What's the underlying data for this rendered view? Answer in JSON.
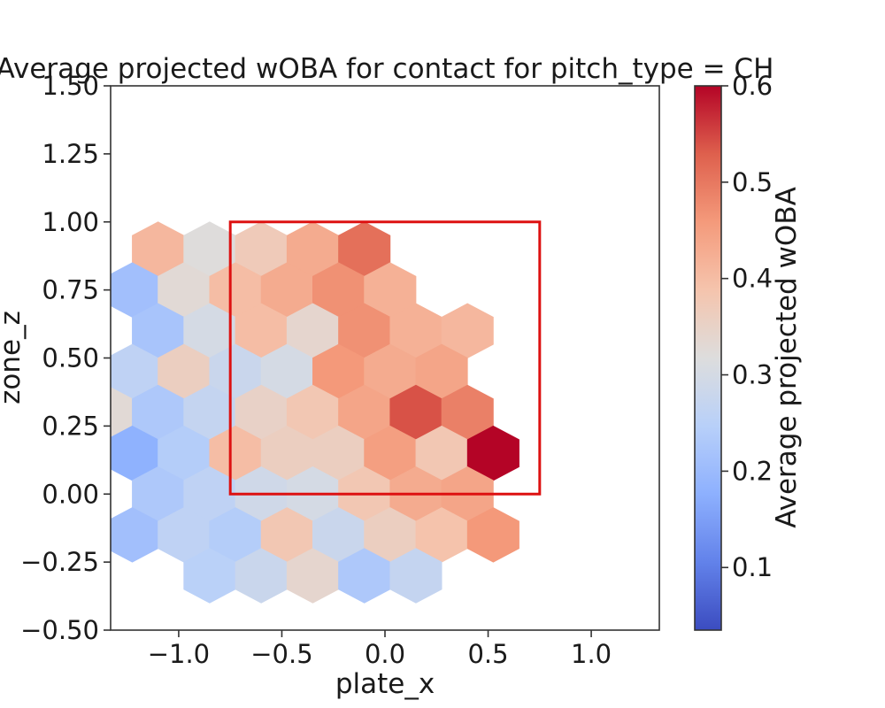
{
  "chart_data": {
    "type": "heatmap",
    "subtype": "hexbin",
    "title": "Average projected wOBA for contact for pitch_type = CH",
    "xlabel": "plate_x",
    "ylabel": "zone_z",
    "xlim": [
      -1.33,
      1.33
    ],
    "ylim": [
      -0.5,
      1.5
    ],
    "xticks": [
      -1.0,
      -0.5,
      0.0,
      0.5,
      1.0
    ],
    "xtick_labels": [
      "−1.0",
      "−0.5",
      "0.0",
      "0.5",
      "1.0"
    ],
    "yticks": [
      -0.5,
      -0.25,
      0.0,
      0.25,
      0.5,
      0.75,
      1.0,
      1.25,
      1.5
    ],
    "ytick_labels": [
      "−0.50",
      "−0.25",
      "0.00",
      "0.25",
      "0.50",
      "0.75",
      "1.00",
      "1.25",
      "1.50"
    ],
    "colormap": "coolwarm",
    "grid": false,
    "colorbar": {
      "label": "Average projected wOBA",
      "range": [
        0.035,
        0.6
      ],
      "ticks": [
        0.1,
        0.2,
        0.3,
        0.4,
        0.5,
        0.6
      ],
      "tick_labels": [
        "0.1",
        "0.2",
        "0.3",
        "0.4",
        "0.5",
        "0.6"
      ]
    },
    "strike_zone": {
      "x": [
        -0.75,
        0.75
      ],
      "z": [
        0.0,
        1.0
      ],
      "color": "#dd1111"
    },
    "cells": [
      {
        "x": -1.1,
        "z": 0.9,
        "value": 0.41
      },
      {
        "x": -0.85,
        "z": 0.9,
        "value": 0.32
      },
      {
        "x": -0.6,
        "z": 0.9,
        "value": 0.37
      },
      {
        "x": -0.35,
        "z": 0.9,
        "value": 0.43
      },
      {
        "x": -0.1,
        "z": 0.9,
        "value": 0.51
      },
      {
        "x": -1.225,
        "z": 0.75,
        "value": 0.21
      },
      {
        "x": -0.975,
        "z": 0.75,
        "value": 0.33
      },
      {
        "x": -0.725,
        "z": 0.75,
        "value": 0.4
      },
      {
        "x": -0.475,
        "z": 0.75,
        "value": 0.43
      },
      {
        "x": -0.225,
        "z": 0.75,
        "value": 0.47
      },
      {
        "x": 0.025,
        "z": 0.75,
        "value": 0.42
      },
      {
        "x": -1.1,
        "z": 0.6,
        "value": 0.22
      },
      {
        "x": -0.85,
        "z": 0.6,
        "value": 0.3
      },
      {
        "x": -0.6,
        "z": 0.6,
        "value": 0.4
      },
      {
        "x": -0.35,
        "z": 0.6,
        "value": 0.34
      },
      {
        "x": -0.1,
        "z": 0.6,
        "value": 0.47
      },
      {
        "x": 0.15,
        "z": 0.6,
        "value": 0.42
      },
      {
        "x": 0.4,
        "z": 0.6,
        "value": 0.41
      },
      {
        "x": -1.225,
        "z": 0.45,
        "value": 0.26
      },
      {
        "x": -0.975,
        "z": 0.45,
        "value": 0.36
      },
      {
        "x": -0.725,
        "z": 0.45,
        "value": 0.28
      },
      {
        "x": -0.475,
        "z": 0.45,
        "value": 0.3
      },
      {
        "x": -0.225,
        "z": 0.45,
        "value": 0.46
      },
      {
        "x": 0.025,
        "z": 0.45,
        "value": 0.43
      },
      {
        "x": 0.275,
        "z": 0.45,
        "value": 0.44
      },
      {
        "x": -1.35,
        "z": 0.3,
        "value": 0.33
      },
      {
        "x": -1.1,
        "z": 0.3,
        "value": 0.23
      },
      {
        "x": -0.85,
        "z": 0.3,
        "value": 0.27
      },
      {
        "x": -0.6,
        "z": 0.3,
        "value": 0.35
      },
      {
        "x": -0.35,
        "z": 0.3,
        "value": 0.38
      },
      {
        "x": -0.1,
        "z": 0.3,
        "value": 0.44
      },
      {
        "x": 0.15,
        "z": 0.3,
        "value": 0.54
      },
      {
        "x": 0.4,
        "z": 0.3,
        "value": 0.49
      },
      {
        "x": -1.225,
        "z": 0.15,
        "value": 0.18
      },
      {
        "x": -0.975,
        "z": 0.15,
        "value": 0.24
      },
      {
        "x": -0.725,
        "z": 0.15,
        "value": 0.4
      },
      {
        "x": -0.475,
        "z": 0.15,
        "value": 0.36
      },
      {
        "x": -0.225,
        "z": 0.15,
        "value": 0.36
      },
      {
        "x": 0.025,
        "z": 0.15,
        "value": 0.45
      },
      {
        "x": 0.275,
        "z": 0.15,
        "value": 0.38
      },
      {
        "x": 0.525,
        "z": 0.15,
        "value": 0.6
      },
      {
        "x": -1.1,
        "z": 0.0,
        "value": 0.23
      },
      {
        "x": -0.85,
        "z": 0.0,
        "value": 0.26
      },
      {
        "x": -0.6,
        "z": 0.0,
        "value": 0.29
      },
      {
        "x": -0.35,
        "z": 0.0,
        "value": 0.3
      },
      {
        "x": -0.1,
        "z": 0.0,
        "value": 0.38
      },
      {
        "x": 0.15,
        "z": 0.0,
        "value": 0.43
      },
      {
        "x": 0.4,
        "z": 0.0,
        "value": 0.44
      },
      {
        "x": -1.225,
        "z": -0.15,
        "value": 0.21
      },
      {
        "x": -0.975,
        "z": -0.15,
        "value": 0.26
      },
      {
        "x": -0.725,
        "z": -0.15,
        "value": 0.24
      },
      {
        "x": -0.475,
        "z": -0.15,
        "value": 0.38
      },
      {
        "x": -0.225,
        "z": -0.15,
        "value": 0.28
      },
      {
        "x": 0.025,
        "z": -0.15,
        "value": 0.36
      },
      {
        "x": 0.275,
        "z": -0.15,
        "value": 0.39
      },
      {
        "x": 0.525,
        "z": -0.15,
        "value": 0.46
      },
      {
        "x": -0.85,
        "z": -0.3,
        "value": 0.25
      },
      {
        "x": -0.6,
        "z": -0.3,
        "value": 0.28
      },
      {
        "x": -0.35,
        "z": -0.3,
        "value": 0.34
      },
      {
        "x": -0.1,
        "z": -0.3,
        "value": 0.23
      },
      {
        "x": 0.15,
        "z": -0.3,
        "value": 0.27
      }
    ]
  }
}
